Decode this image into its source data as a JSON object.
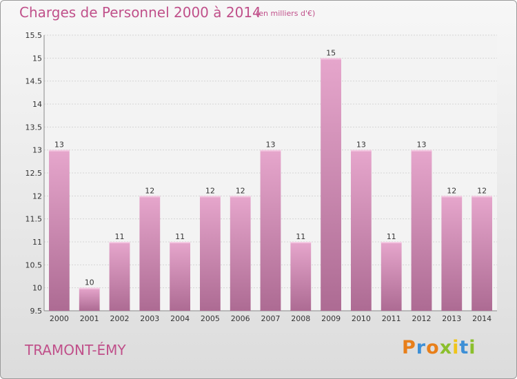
{
  "header": {
    "title": "Charges de Personnel 2000 à 2014",
    "subtitle": "(en milliers d'€)"
  },
  "footer": {
    "city": "TRAMONT-ÉMY",
    "logo_text": "Proxiti"
  },
  "colors": {
    "bar_top": "#e6a6cc",
    "bar_bottom": "#ad6b93",
    "title": "#c0508a",
    "axis_text": "#333333",
    "grid": "#d4d4d4"
  },
  "chart_data": {
    "type": "bar",
    "title": "Charges de Personnel 2000 à 2014",
    "subtitle": "(en milliers d'€)",
    "xlabel": "",
    "ylabel": "",
    "categories": [
      "2000",
      "2001",
      "2002",
      "2003",
      "2004",
      "2005",
      "2006",
      "2007",
      "2008",
      "2009",
      "2010",
      "2011",
      "2012",
      "2013",
      "2014"
    ],
    "values": [
      13,
      10,
      11,
      12,
      11,
      12,
      12,
      13,
      11,
      15,
      13,
      11,
      13,
      12,
      12
    ],
    "data_labels": [
      "13",
      "10",
      "11",
      "12",
      "11",
      "12",
      "12",
      "13",
      "11",
      "15",
      "13",
      "11",
      "13",
      "12",
      "12"
    ],
    "ylim": [
      9.5,
      15.5
    ],
    "yticks": [
      9.5,
      10,
      10.5,
      11,
      11.5,
      12,
      12.5,
      13,
      13.5,
      14,
      14.5,
      15,
      15.5
    ],
    "ytick_labels": [
      "9.5",
      "10",
      "10.5",
      "11",
      "11.5",
      "12",
      "12.5",
      "13",
      "13.5",
      "14",
      "14.5",
      "15",
      "15.5"
    ],
    "grid": true,
    "legend": "none"
  }
}
